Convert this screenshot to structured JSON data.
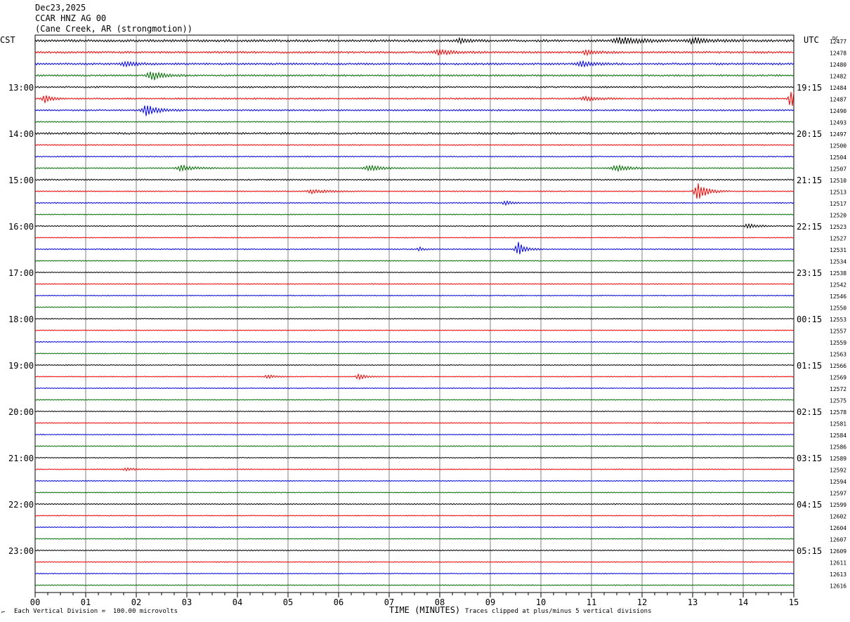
{
  "header": {
    "date": "Dec23,2025",
    "station": "CCAR HNZ AG 00",
    "location": "(Cane Creek, AR (strongmotion))"
  },
  "left_tz": "CST",
  "right_tz": "UTC",
  "dc_label": "DC",
  "footer": {
    "scale_mark": "⌐",
    "vertical_division": "Each Vertical Division =  100.00 microvolts",
    "x_title": "TIME (MINUTES)",
    "clip_note": "Traces clipped at plus/minus 5 vertical divisions"
  },
  "colors": {
    "cycle": [
      "#000000",
      "#ff0000",
      "#0000ff",
      "#007000"
    ],
    "grid": "#808080"
  },
  "chart_data": {
    "type": "line",
    "title": "CCAR HNZ AG 00",
    "xlabel": "TIME (MINUTES)",
    "x_ticks": [
      "00",
      "01",
      "02",
      "03",
      "04",
      "05",
      "06",
      "07",
      "08",
      "09",
      "10",
      "11",
      "12",
      "13",
      "14",
      "15"
    ],
    "xlim": [
      0,
      15
    ],
    "grid": true,
    "traces_per_hour": 4,
    "left_hour_labels": [
      "13:00",
      "14:00",
      "15:00",
      "16:00",
      "17:00",
      "18:00",
      "19:00",
      "20:00",
      "21:00",
      "22:00",
      "23:00"
    ],
    "right_hour_labels": [
      "19:15",
      "20:15",
      "21:15",
      "22:15",
      "23:15",
      "00:15",
      "01:15",
      "02:15",
      "03:15",
      "04:15",
      "05:15"
    ],
    "dc_offsets": [
      12477,
      12478,
      12480,
      12482,
      12484,
      12487,
      12490,
      12493,
      12497,
      12500,
      12504,
      12507,
      12510,
      12513,
      12517,
      12520,
      12523,
      12527,
      12531,
      12534,
      12538,
      12542,
      12546,
      12550,
      12553,
      12557,
      12559,
      12563,
      12566,
      12569,
      12572,
      12575,
      12578,
      12581,
      12584,
      12586,
      12589,
      12592,
      12594,
      12597,
      12599,
      12602,
      12604,
      12607,
      12609,
      12611,
      12613,
      12616
    ],
    "noise_level": [
      1.2,
      1.0,
      1.0,
      0.9,
      0.8,
      0.8,
      0.8,
      0.6,
      1.0,
      0.6,
      0.6,
      0.6,
      0.7,
      0.6,
      0.6,
      0.5,
      0.6,
      0.5,
      0.6,
      0.5,
      0.5,
      0.5,
      0.5,
      0.5,
      0.5,
      0.5,
      0.5,
      0.5,
      0.5,
      0.5,
      0.5,
      0.5,
      0.5,
      0.5,
      0.5,
      0.5,
      0.5,
      0.5,
      0.5,
      0.5,
      0.6,
      0.5,
      0.5,
      0.5,
      0.6,
      0.5,
      0.5,
      0.5
    ],
    "events": [
      {
        "trace": 0,
        "minute": 11.6,
        "amp": 5,
        "width": 0.8
      },
      {
        "trace": 0,
        "minute": 13.0,
        "amp": 4,
        "width": 0.6
      },
      {
        "trace": 0,
        "minute": 8.4,
        "amp": 3,
        "width": 0.4
      },
      {
        "trace": 1,
        "minute": 8.0,
        "amp": 4,
        "width": 0.6
      },
      {
        "trace": 1,
        "minute": 10.9,
        "amp": 3,
        "width": 0.5
      },
      {
        "trace": 2,
        "minute": 1.8,
        "amp": 3,
        "width": 0.5
      },
      {
        "trace": 2,
        "minute": 10.8,
        "amp": 4,
        "width": 0.5
      },
      {
        "trace": 3,
        "minute": 2.3,
        "amp": 7,
        "width": 0.5
      },
      {
        "trace": 5,
        "minute": 0.2,
        "amp": 6,
        "width": 0.3
      },
      {
        "trace": 5,
        "minute": 14.95,
        "amp": 12,
        "width": 0.3
      },
      {
        "trace": 5,
        "minute": 10.9,
        "amp": 3,
        "width": 0.5
      },
      {
        "trace": 6,
        "minute": 2.2,
        "amp": 8,
        "width": 0.5
      },
      {
        "trace": 11,
        "minute": 2.9,
        "amp": 4,
        "width": 0.6
      },
      {
        "trace": 11,
        "minute": 6.6,
        "amp": 4,
        "width": 0.6
      },
      {
        "trace": 11,
        "minute": 11.5,
        "amp": 4,
        "width": 0.6
      },
      {
        "trace": 13,
        "minute": 13.1,
        "amp": 12,
        "width": 0.4
      },
      {
        "trace": 13,
        "minute": 5.5,
        "amp": 3,
        "width": 0.6
      },
      {
        "trace": 14,
        "minute": 9.3,
        "amp": 3,
        "width": 0.3
      },
      {
        "trace": 16,
        "minute": 14.1,
        "amp": 3,
        "width": 0.4
      },
      {
        "trace": 18,
        "minute": 9.55,
        "amp": 10,
        "width": 0.3
      },
      {
        "trace": 18,
        "minute": 7.6,
        "amp": 3,
        "width": 0.2
      },
      {
        "trace": 29,
        "minute": 6.4,
        "amp": 4,
        "width": 0.3
      },
      {
        "trace": 29,
        "minute": 4.6,
        "amp": 3,
        "width": 0.3
      },
      {
        "trace": 37,
        "minute": 1.8,
        "amp": 2.5,
        "width": 0.3
      }
    ]
  }
}
